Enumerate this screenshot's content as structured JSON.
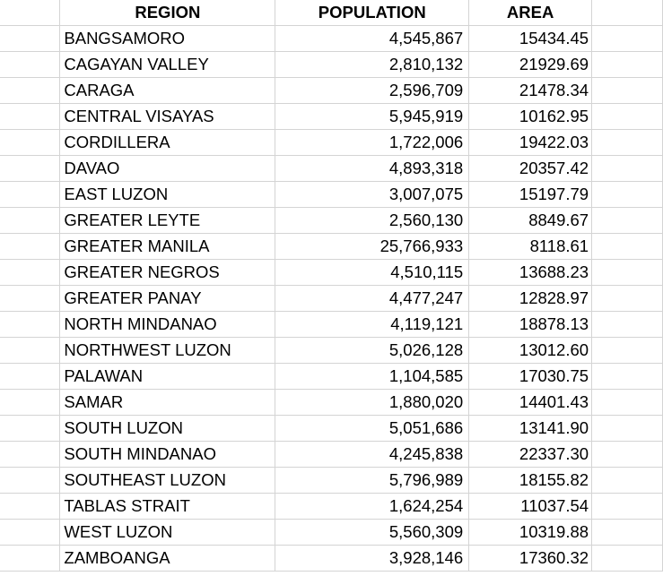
{
  "table": {
    "headers": {
      "region": "REGION",
      "population": "POPULATION",
      "area": "AREA"
    },
    "rows": [
      {
        "region": "BANGSAMORO",
        "population": "4,545,867",
        "area": "15434.45"
      },
      {
        "region": "CAGAYAN VALLEY",
        "population": "2,810,132",
        "area": "21929.69"
      },
      {
        "region": "CARAGA",
        "population": "2,596,709",
        "area": "21478.34"
      },
      {
        "region": "CENTRAL VISAYAS",
        "population": "5,945,919",
        "area": "10162.95"
      },
      {
        "region": "CORDILLERA",
        "population": "1,722,006",
        "area": "19422.03"
      },
      {
        "region": "DAVAO",
        "population": "4,893,318",
        "area": "20357.42"
      },
      {
        "region": "EAST LUZON",
        "population": "3,007,075",
        "area": "15197.79"
      },
      {
        "region": "GREATER LEYTE",
        "population": "2,560,130",
        "area": "8849.67"
      },
      {
        "region": "GREATER MANILA",
        "population": "25,766,933",
        "area": "8118.61"
      },
      {
        "region": "GREATER NEGROS",
        "population": "4,510,115",
        "area": "13688.23"
      },
      {
        "region": "GREATER PANAY",
        "population": "4,477,247",
        "area": "12828.97"
      },
      {
        "region": "NORTH MINDANAO",
        "population": "4,119,121",
        "area": "18878.13"
      },
      {
        "region": "NORTHWEST LUZON",
        "population": "5,026,128",
        "area": "13012.60"
      },
      {
        "region": "PALAWAN",
        "population": "1,104,585",
        "area": "17030.75"
      },
      {
        "region": "SAMAR",
        "population": "1,880,020",
        "area": "14401.43"
      },
      {
        "region": "SOUTH LUZON",
        "population": "5,051,686",
        "area": "13141.90"
      },
      {
        "region": "SOUTH MINDANAO",
        "population": "4,245,838",
        "area": "22337.30"
      },
      {
        "region": "SOUTHEAST LUZON",
        "population": "5,796,989",
        "area": "18155.82"
      },
      {
        "region": "TABLAS STRAIT",
        "population": "1,624,254",
        "area": "11037.54"
      },
      {
        "region": "WEST LUZON",
        "population": "5,560,309",
        "area": "10319.88"
      },
      {
        "region": "ZAMBOANGA",
        "population": "3,928,146",
        "area": "17360.32"
      }
    ]
  }
}
